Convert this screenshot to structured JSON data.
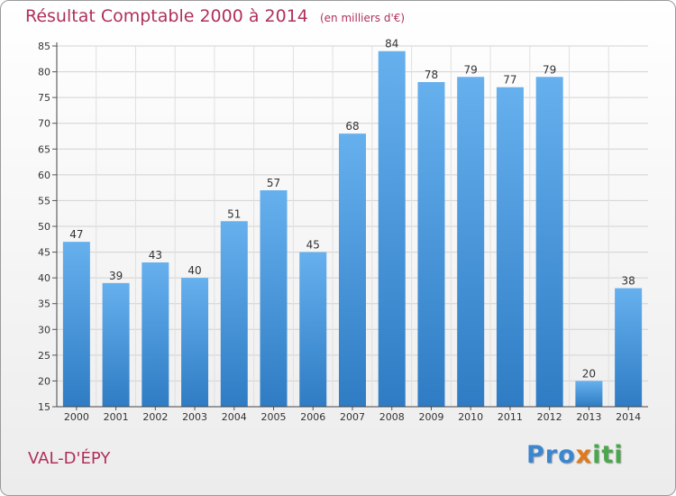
{
  "title": "Résultat Comptable 2000 à 2014",
  "unit": "(en milliers d'€)",
  "commune": "VAL-D'ÉPY",
  "logo": {
    "p1": "Pro",
    "p2": "x",
    "p3": "iti"
  },
  "colors": {
    "bar": "#3f8fd8",
    "bar_light": "#66b0ee",
    "title": "#b0305c"
  },
  "chart_data": {
    "type": "bar",
    "title": "Résultat Comptable 2000 à 2014",
    "ylabel": "en milliers d'€",
    "categories": [
      "2000",
      "2001",
      "2002",
      "2003",
      "2004",
      "2005",
      "2006",
      "2007",
      "2008",
      "2009",
      "2010",
      "2011",
      "2012",
      "2013",
      "2014"
    ],
    "values": [
      47,
      39,
      43,
      40,
      51,
      57,
      45,
      68,
      84,
      78,
      79,
      77,
      79,
      20,
      38
    ],
    "ylim": [
      15,
      85
    ],
    "yticks": [
      15,
      20,
      25,
      30,
      35,
      40,
      45,
      50,
      55,
      60,
      65,
      70,
      75,
      80,
      85
    ],
    "grid": true
  }
}
